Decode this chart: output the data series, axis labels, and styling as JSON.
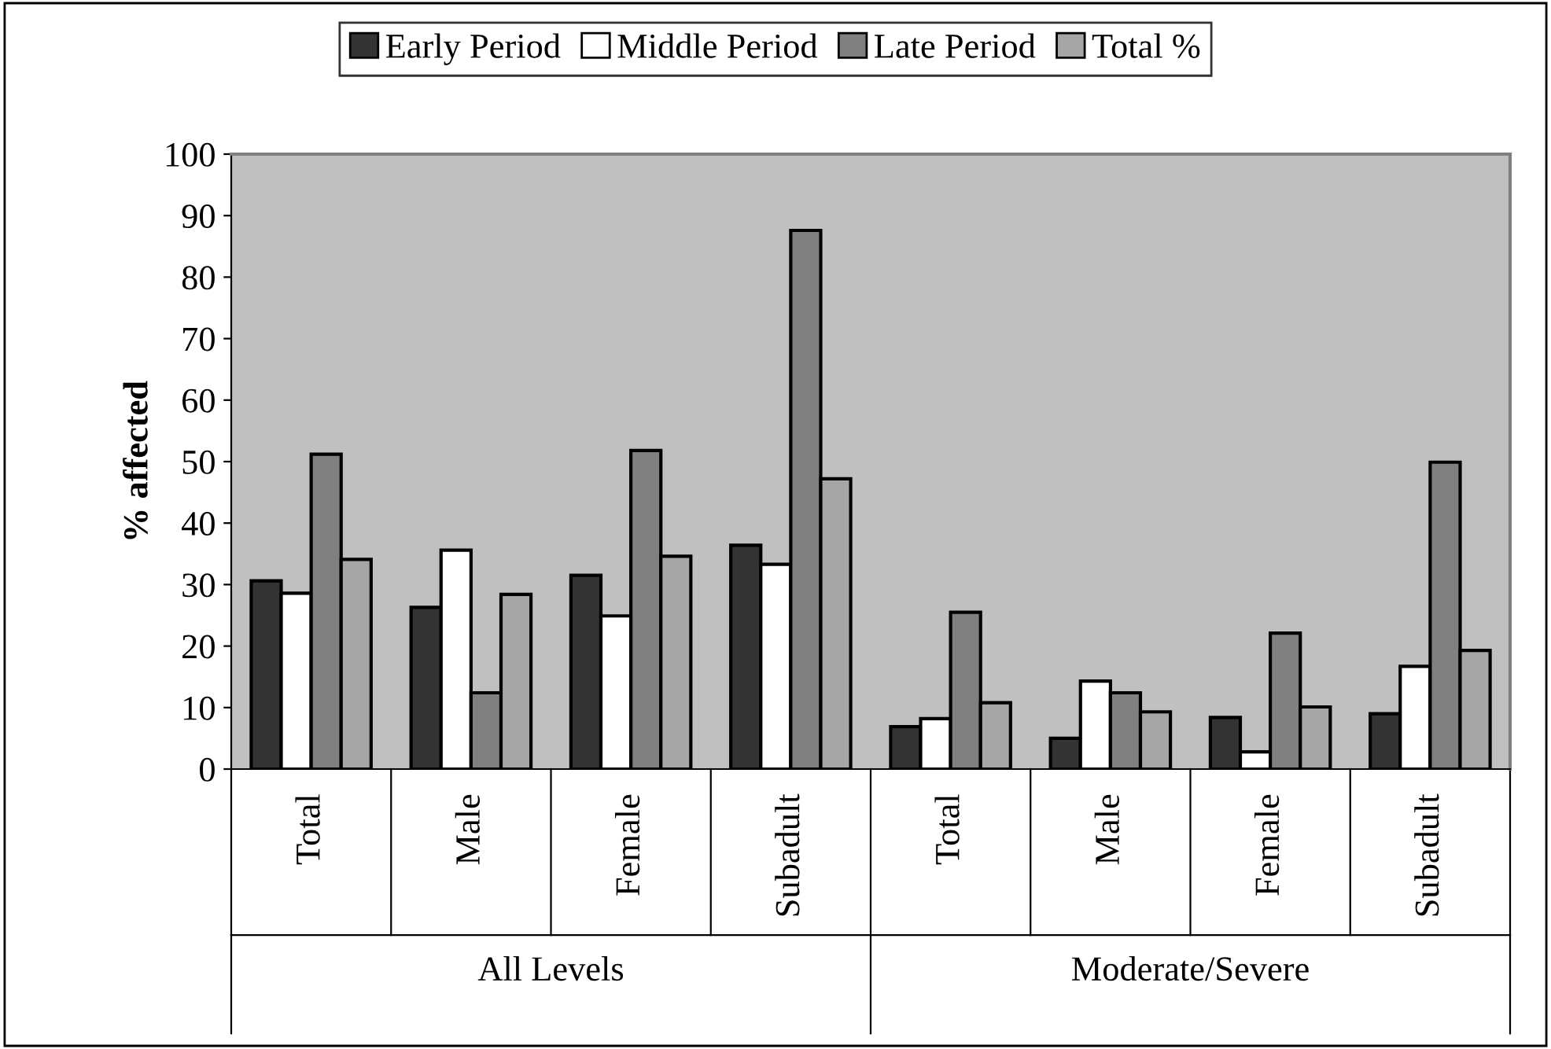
{
  "chart_data": {
    "type": "bar",
    "ylabel": "% affected",
    "categories": [
      "Total",
      "Male",
      "Female",
      "Subadult",
      "Total",
      "Male",
      "Female",
      "Subadult"
    ],
    "series": [
      {
        "name": "Early Period",
        "color": "#333333",
        "values": [
          30.6,
          26.3,
          31.5,
          36.4,
          6.9,
          5.0,
          8.4,
          9.0
        ]
      },
      {
        "name": "Middle Period",
        "color": "#ffffff",
        "values": [
          28.6,
          35.6,
          24.9,
          33.3,
          8.2,
          14.3,
          2.8,
          16.7
        ]
      },
      {
        "name": "Late Period",
        "color": "#808080",
        "values": [
          51.2,
          12.4,
          51.8,
          87.6,
          25.5,
          12.4,
          22.1,
          49.9
        ]
      },
      {
        "name": "Total %",
        "color": "#a6a6a6",
        "values": [
          34.1,
          28.4,
          34.6,
          47.2,
          10.8,
          9.3,
          10.1,
          19.3
        ]
      }
    ],
    "annotations": [
      "All Levels",
      "Moderate/Severe"
    ],
    "ylim": [
      0,
      100
    ],
    "yticks": [
      0,
      10,
      20,
      30,
      40,
      50,
      60,
      70,
      80,
      90,
      100
    ],
    "grid": false,
    "legend": "top"
  }
}
